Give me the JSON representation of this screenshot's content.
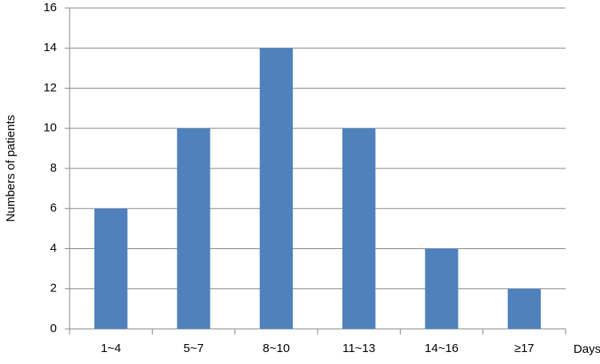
{
  "chart_data": {
    "type": "bar",
    "y_label": "Numbers of patients",
    "x_label": "Days",
    "categories": [
      "1~4",
      "5~7",
      "8~10",
      "11~13",
      "14~16",
      "≥17"
    ],
    "values": [
      6,
      10,
      14,
      10,
      4,
      2
    ],
    "color": "#4f81bd",
    "ylim": [
      0,
      16
    ],
    "yticks": [
      0,
      2,
      4,
      6,
      8,
      10,
      12,
      14,
      16
    ],
    "grid": true
  }
}
